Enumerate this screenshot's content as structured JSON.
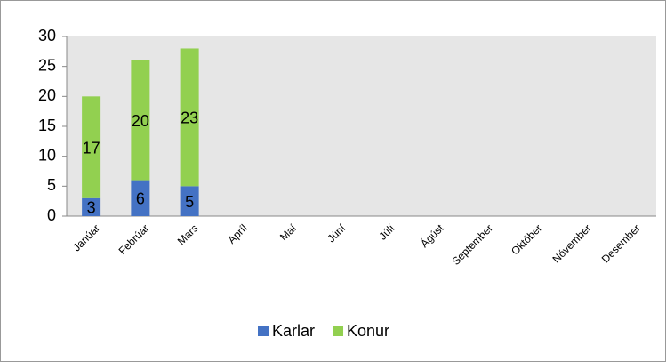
{
  "chart_data": {
    "type": "bar",
    "stacked": true,
    "categories": [
      "Janúar",
      "Febrúar",
      "Mars",
      "Apríl",
      "Maí",
      "Júní",
      "Júlí",
      "Ágúst",
      "September",
      "Október",
      "Nóvember",
      "Desember"
    ],
    "series": [
      {
        "name": "Karlar",
        "color": "#4472c4",
        "values": [
          3,
          6,
          5,
          null,
          null,
          null,
          null,
          null,
          null,
          null,
          null,
          null
        ]
      },
      {
        "name": "Konur",
        "color": "#92d050",
        "values": [
          17,
          20,
          23,
          null,
          null,
          null,
          null,
          null,
          null,
          null,
          null,
          null
        ]
      }
    ],
    "ylim": [
      0,
      30
    ],
    "yticks": [
      0,
      5,
      10,
      15,
      20,
      25,
      30
    ],
    "grid": false,
    "legend": "bottom"
  }
}
